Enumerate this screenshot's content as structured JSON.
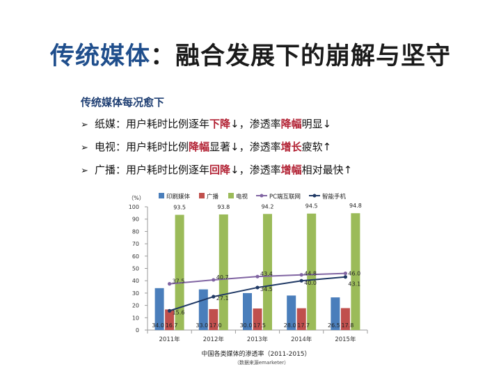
{
  "slide": {
    "title_part1": "传统媒体",
    "title_part2": "：融合发展下的崩解与坚守",
    "subheading": "传统媒体每况愈下",
    "bullets": [
      {
        "marker": "➢",
        "segments": [
          {
            "text": "纸媒：用户耗时比例逐年",
            "hl": false
          },
          {
            "text": "下降",
            "hl": true
          },
          {
            "text": "↓，渗透率",
            "hl": false
          },
          {
            "text": "降幅",
            "hl": true
          },
          {
            "text": "明显↓",
            "hl": false
          }
        ]
      },
      {
        "marker": "➢",
        "segments": [
          {
            "text": "电视：用户耗时比例",
            "hl": false
          },
          {
            "text": "降幅",
            "hl": true
          },
          {
            "text": "显著↓，渗透率",
            "hl": false
          },
          {
            "text": "增长",
            "hl": true
          },
          {
            "text": "疲软↑",
            "hl": false
          }
        ]
      },
      {
        "marker": "➢",
        "segments": [
          {
            "text": "广播：用户耗时比例逐年",
            "hl": false
          },
          {
            "text": "回降",
            "hl": true
          },
          {
            "text": "↓，渗透率",
            "hl": false
          },
          {
            "text": "增幅",
            "hl": true
          },
          {
            "text": "相对最快↑",
            "hl": false
          }
        ]
      }
    ]
  },
  "chart_data": {
    "type": "bar",
    "title": "中国各类媒体的渗透率（2011-2015）",
    "source_note": "（数据来源emarketer）",
    "ylabel": "（%）",
    "ylim": [
      0,
      100
    ],
    "yticks": [
      0,
      10,
      20,
      30,
      40,
      50,
      60,
      70,
      80,
      90,
      100
    ],
    "categories": [
      "2011年",
      "2012年",
      "2013年",
      "2014年",
      "2015年"
    ],
    "grid": false,
    "legend_position": "top",
    "series": [
      {
        "name": "印刷媒体",
        "kind": "bar",
        "color": "#4a7ebb",
        "values": [
          34.0,
          33.0,
          30.0,
          28.0,
          26.5
        ]
      },
      {
        "name": "广播",
        "kind": "bar",
        "color": "#c0504d",
        "values": [
          16.7,
          17.0,
          17.5,
          17.7,
          17.8
        ]
      },
      {
        "name": "电视",
        "kind": "bar",
        "color": "#9bbb59",
        "values": [
          93.5,
          93.8,
          94.2,
          94.5,
          94.8
        ]
      },
      {
        "name": "PC端互联网",
        "kind": "line",
        "color": "#8064a2",
        "values": [
          37.5,
          40.7,
          43.4,
          44.8,
          46.0
        ]
      },
      {
        "name": "智能手机",
        "kind": "line",
        "color": "#1f3864",
        "values": [
          15.6,
          27.1,
          34.5,
          40.0,
          43.1
        ]
      }
    ]
  }
}
